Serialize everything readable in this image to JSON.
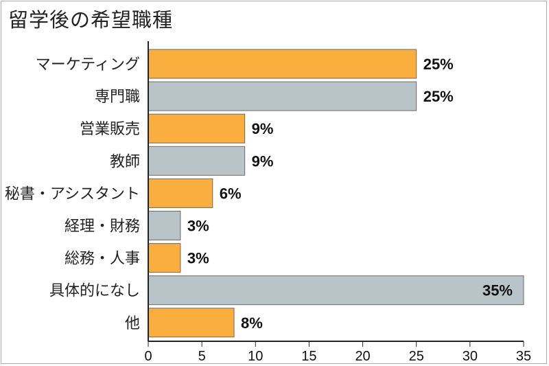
{
  "chart_data": {
    "type": "bar",
    "orientation": "horizontal",
    "title": "留学後の希望職種",
    "categories": [
      "マーケティング",
      "専門職",
      "営業販売",
      "教師",
      "秘書・アシスタント",
      "経理・財務",
      "総務・人事",
      "具体的になし",
      "他"
    ],
    "values": [
      25,
      25,
      9,
      9,
      6,
      3,
      3,
      35,
      8
    ],
    "value_labels": [
      "25%",
      "25%",
      "9%",
      "9%",
      "6%",
      "3%",
      "3%",
      "35%",
      "8%"
    ],
    "xlim": [
      0,
      35
    ],
    "xticks": [
      0,
      5,
      10,
      15,
      20,
      25,
      30,
      35
    ],
    "grid": false,
    "colors": {
      "odd": "#F9AE3D",
      "even": "#B9C4C8",
      "bar_edge": "#6a6a6a"
    }
  }
}
